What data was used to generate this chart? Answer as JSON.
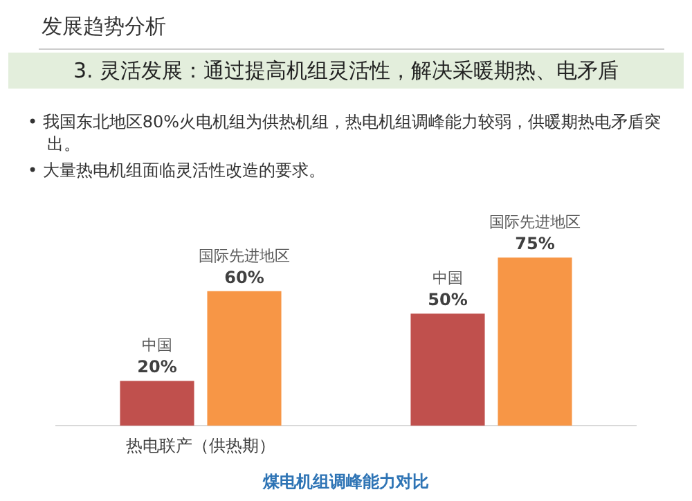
{
  "chart_data": {
    "type": "bar",
    "title": "煤电机组调峰能力对比",
    "subtitle": "3. 灵活发展：通过提高机组灵活性，解决采暖期热、电矛盾",
    "annotations": [
      "发展趋势分析",
      "• 我国东北地区80%火电机组为供热机组，热电机组调峰能力较弱，供暖期热电矛盾突出。",
      "• 大量热电机组面临灵活性改造的要求。"
    ],
    "categories": [
      "热电联产（供热期）",
      null
    ],
    "series": [
      {
        "name": "中国",
        "color": "#c0504d",
        "values": [
          20,
          50
        ],
        "value_labels": [
          "20%",
          "50%"
        ]
      },
      {
        "name": "国际先进地区",
        "color": "#f79646",
        "values": [
          60,
          75
        ],
        "value_labels": [
          "60%",
          "75%"
        ]
      }
    ],
    "legend": false,
    "grid": false
  }
}
